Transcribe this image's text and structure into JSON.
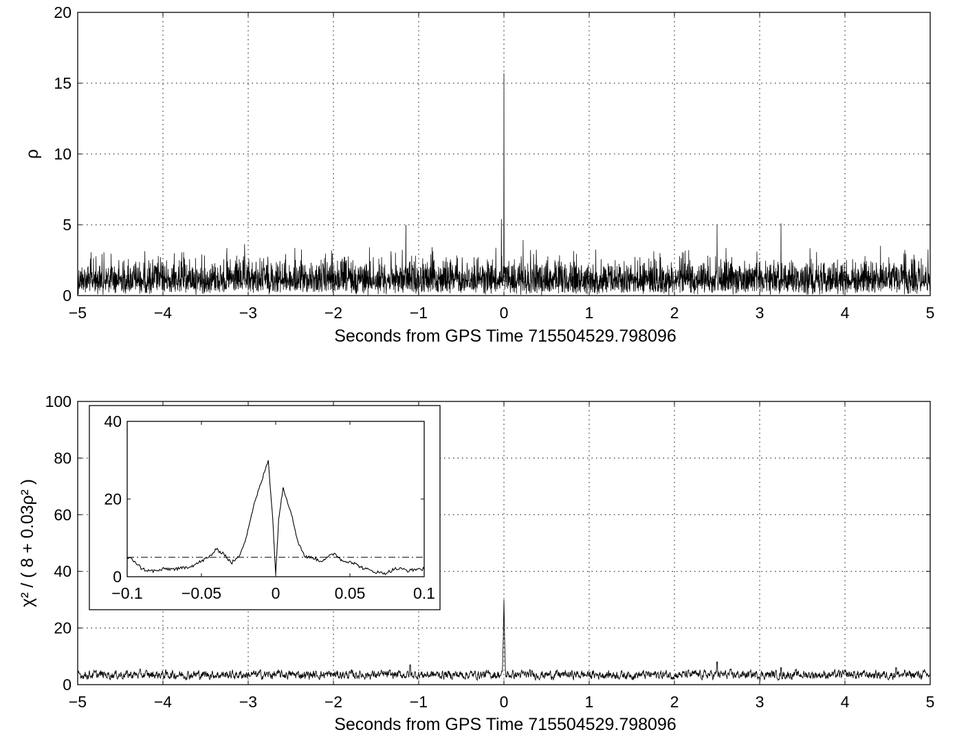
{
  "chart_data": [
    {
      "type": "line",
      "panel": "top",
      "xlabel": "Seconds from GPS Time 715504529.798096",
      "ylabel": "ρ",
      "xlim": [
        -5,
        5
      ],
      "ylim": [
        0,
        20
      ],
      "xticks": [
        "−5",
        "−4",
        "−3",
        "−2",
        "−1",
        "0",
        "1",
        "2",
        "3",
        "4",
        "5"
      ],
      "yticks": [
        "0",
        "5",
        "10",
        "15",
        "20"
      ],
      "grid": true,
      "series": [
        {
          "description_values": "noise-like trace mostly between 0 and about 4, sharp peak at x=0",
          "peak": {
            "x": 0.0,
            "y": 15.7
          },
          "noise_envelope": [
            0,
            4
          ],
          "notable_points": [
            {
              "x": -1.15,
              "y": 5.0
            },
            {
              "x": -0.03,
              "y": 5.4
            },
            {
              "x": 2.5,
              "y": 5.0
            },
            {
              "x": 3.25,
              "y": 5.1
            }
          ]
        }
      ]
    },
    {
      "type": "line",
      "panel": "bottom",
      "xlabel": "Seconds from GPS Time 715504529.798096",
      "ylabel": "χ² / ( 8 + 0.03ρ² )",
      "xlim": [
        -5,
        5
      ],
      "ylim": [
        0,
        100
      ],
      "xticks": [
        "−5",
        "−4",
        "−3",
        "−2",
        "−1",
        "0",
        "1",
        "2",
        "3",
        "4",
        "5"
      ],
      "yticks": [
        "0",
        "20",
        "40",
        "60",
        "80",
        "100"
      ],
      "grid": true,
      "series": [
        {
          "baseline": [
            1,
            6
          ],
          "peak": {
            "x": 0.0,
            "y": 30
          },
          "notable_points": [
            {
              "x": -1.1,
              "y": 7
            },
            {
              "x": 2.5,
              "y": 8
            },
            {
              "x": 3.25,
              "y": 6
            },
            {
              "x": 4.6,
              "y": 6
            }
          ]
        }
      ],
      "inset": {
        "xlim": [
          -0.1,
          0.1
        ],
        "ylim": [
          0,
          40
        ],
        "xticks": [
          "−0.1",
          "−0.05",
          "0",
          "0.05",
          "0.1"
        ],
        "yticks": [
          "0",
          "20",
          "40"
        ],
        "threshold": 5,
        "x": [
          -0.1,
          -0.095,
          -0.09,
          -0.085,
          -0.08,
          -0.075,
          -0.07,
          -0.065,
          -0.06,
          -0.055,
          -0.05,
          -0.045,
          -0.04,
          -0.035,
          -0.03,
          -0.025,
          -0.02,
          -0.015,
          -0.01,
          -0.005,
          -0.002,
          0.0,
          0.002,
          0.005,
          0.01,
          0.015,
          0.02,
          0.025,
          0.03,
          0.035,
          0.04,
          0.045,
          0.05,
          0.055,
          0.06,
          0.065,
          0.07,
          0.075,
          0.08,
          0.085,
          0.09,
          0.095,
          0.1
        ],
        "y": [
          5,
          4,
          2,
          1.5,
          1.5,
          2,
          2,
          2,
          2.5,
          3,
          4,
          5,
          7,
          6,
          3.5,
          5,
          10,
          18,
          24,
          30,
          15,
          0.5,
          15,
          23,
          17,
          9,
          5,
          5,
          4,
          5,
          6,
          4,
          4,
          3,
          2,
          1.5,
          1,
          1,
          2,
          2,
          1.5,
          2,
          2
        ]
      }
    }
  ]
}
